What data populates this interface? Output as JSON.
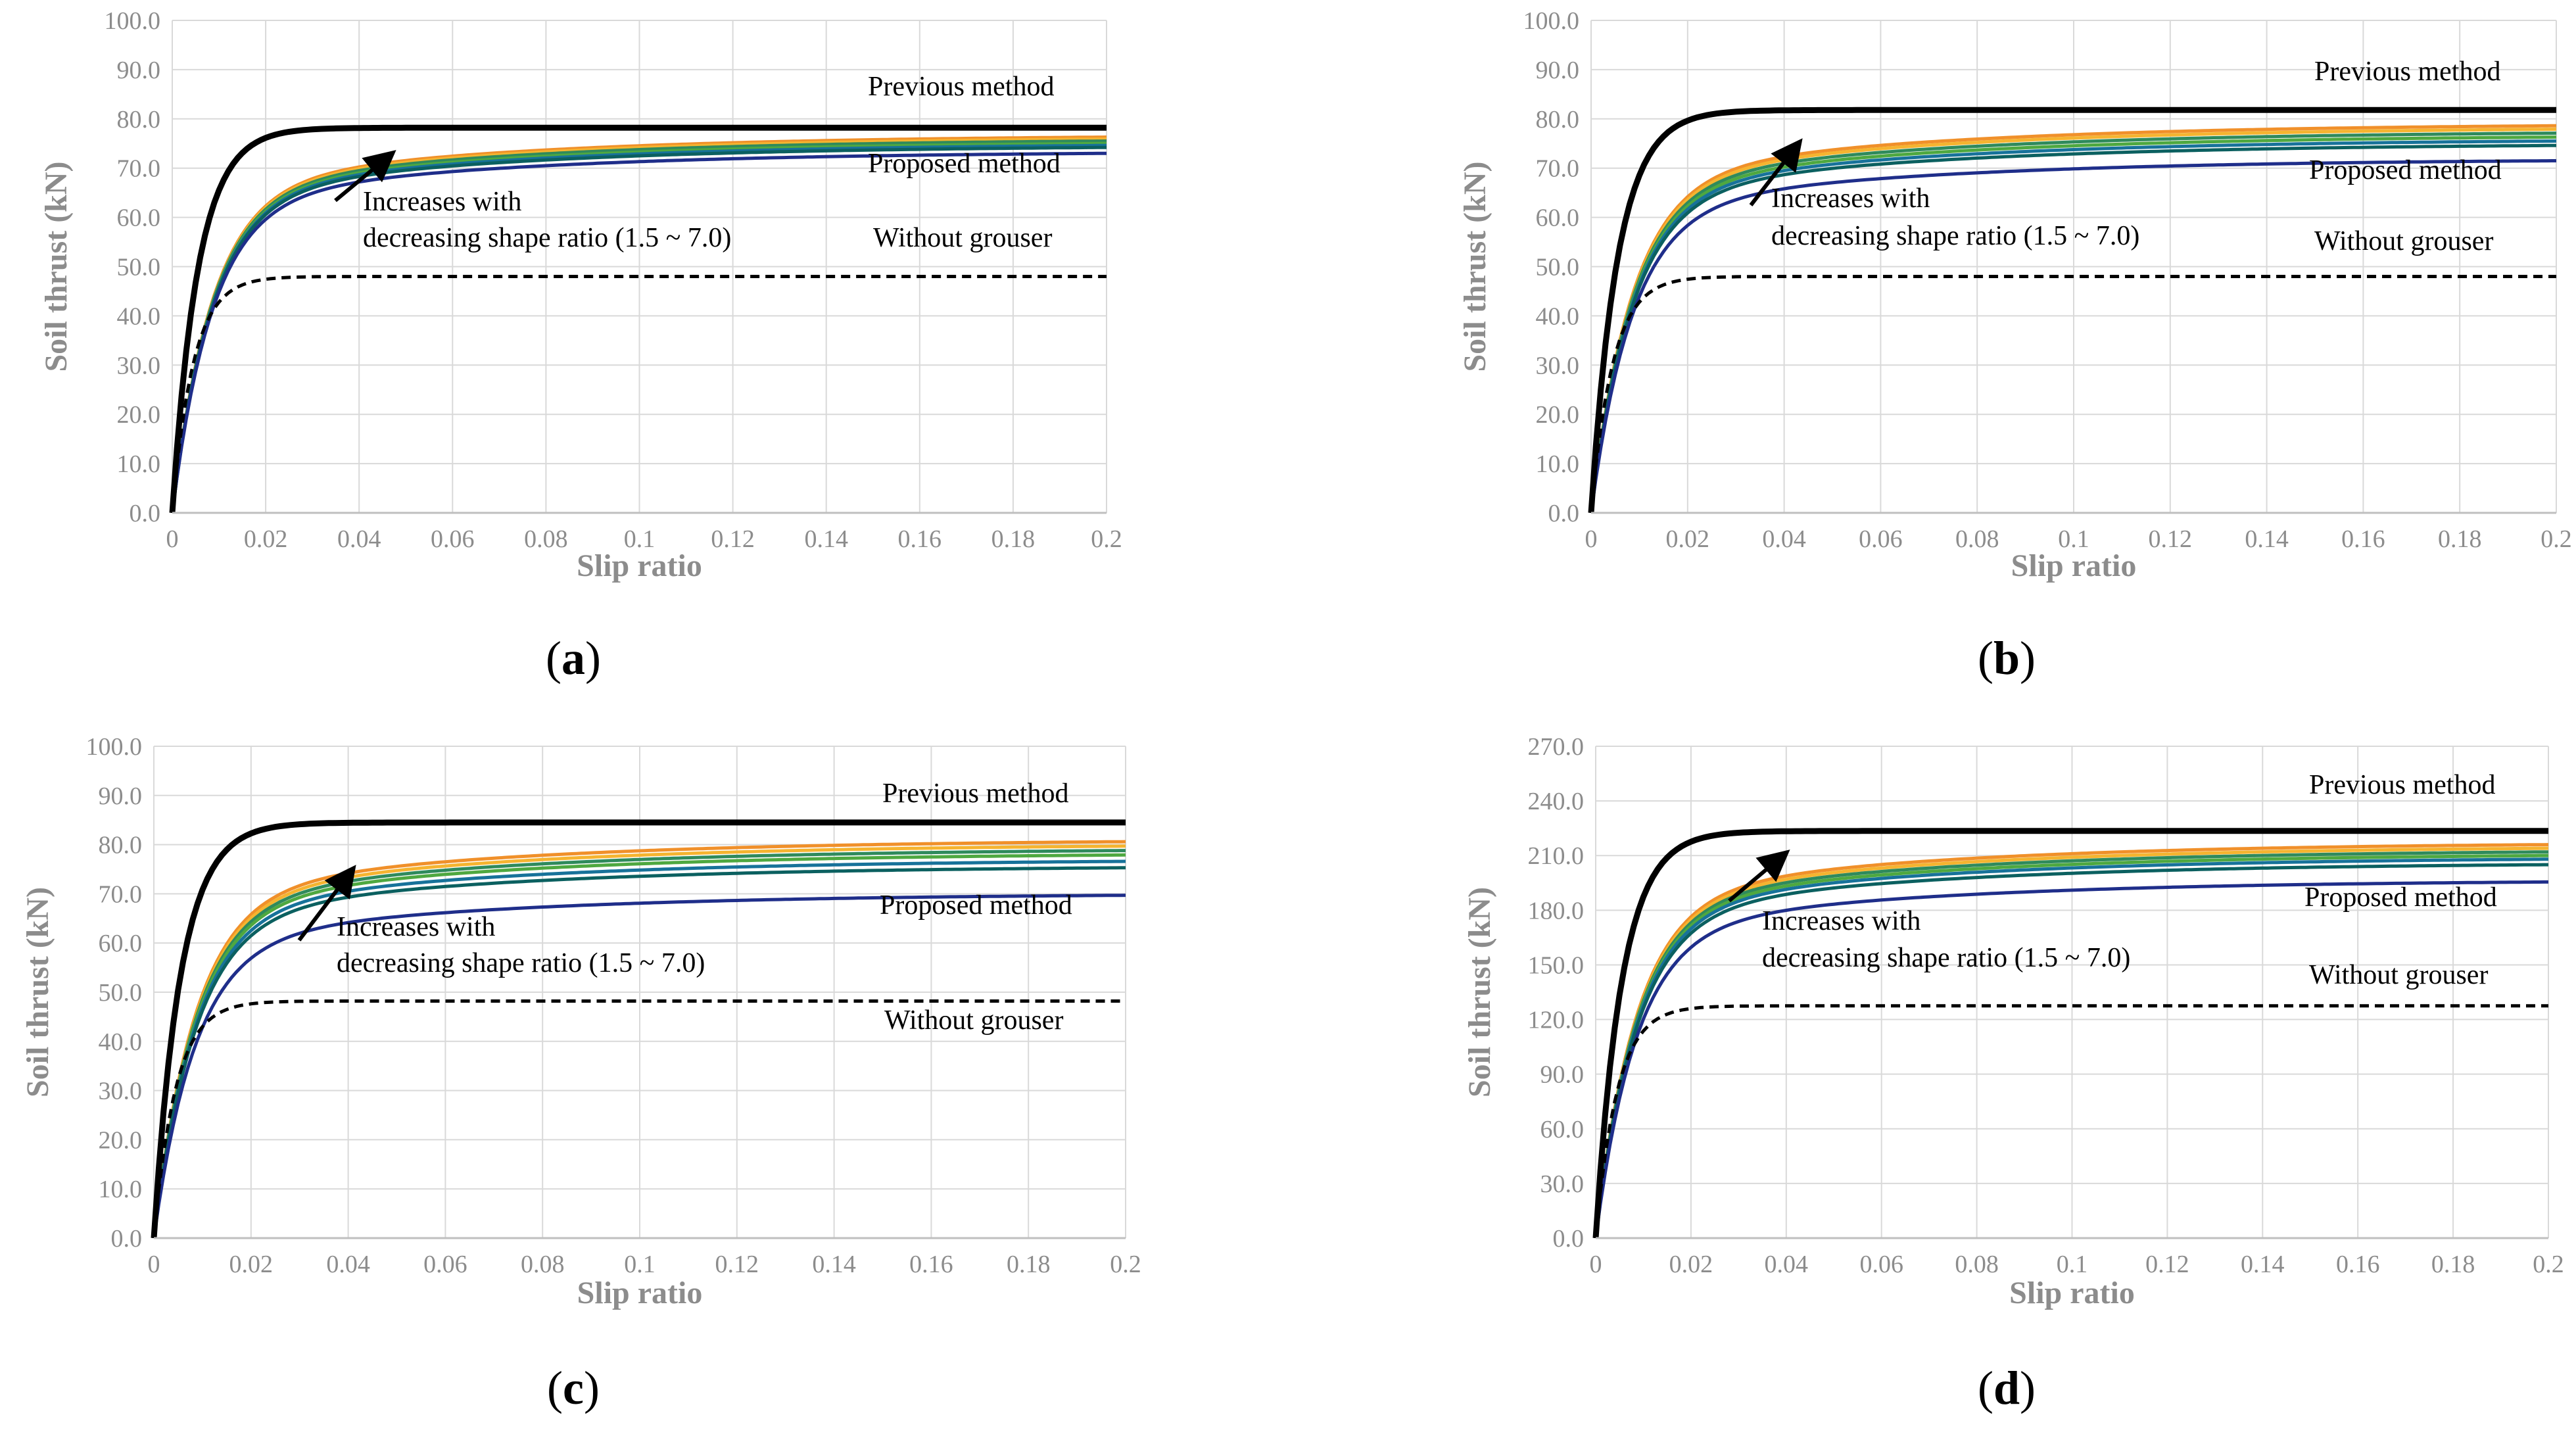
{
  "colors": {
    "previous": "#000000",
    "without": "#000000",
    "proposed_family": [
      "#f0902a",
      "#f5b430",
      "#2f8a5c",
      "#4ea840",
      "#17729a",
      "#0b6060",
      "#1f2e8a"
    ],
    "grid": "#d9d9d9",
    "tick_text": "#8c8c8c"
  },
  "chart_data": [
    {
      "panel_label_open": "(",
      "panel_label_letter": "a",
      "panel_label_close": ")",
      "type": "line",
      "xlabel": "Slip ratio",
      "ylabel": "Soil thrust (kN)",
      "xlim": [
        0,
        0.2
      ],
      "ylim": [
        0,
        100
      ],
      "x_ticks": [
        "0",
        "0.02",
        "0.04",
        "0.06",
        "0.08",
        "0.1",
        "0.12",
        "0.14",
        "0.16",
        "0.18",
        "0.2"
      ],
      "y_ticks": [
        "0.0",
        "10.0",
        "20.0",
        "30.0",
        "40.0",
        "50.0",
        "60.0",
        "70.0",
        "80.0",
        "90.0",
        "100.0"
      ],
      "grid": true,
      "annotations": {
        "previous": "Previous method",
        "proposed": "Proposed method",
        "without": "Without grouser",
        "arrow_line1": "Increases with",
        "arrow_line2": "decreasing shape ratio (1.5 ~ 7.0)"
      },
      "previous_method": {
        "plateau": 78.2
      },
      "without_grouser": {
        "plateau": 48.0
      },
      "proposed_method": {
        "finals": [
          76.3,
          75.9,
          75.5,
          75.0,
          74.6,
          74.2,
          73.0
        ]
      }
    },
    {
      "panel_label_open": "(",
      "panel_label_letter": "b",
      "panel_label_close": ")",
      "type": "line",
      "xlabel": "Slip ratio",
      "ylabel": "Soil thrust (kN)",
      "xlim": [
        0,
        0.2
      ],
      "ylim": [
        0,
        100
      ],
      "x_ticks": [
        "0",
        "0.02",
        "0.04",
        "0.06",
        "0.08",
        "0.1",
        "0.12",
        "0.14",
        "0.16",
        "0.18",
        "0.2"
      ],
      "y_ticks": [
        "0.0",
        "10.0",
        "20.0",
        "30.0",
        "40.0",
        "50.0",
        "60.0",
        "70.0",
        "80.0",
        "90.0",
        "100.0"
      ],
      "grid": true,
      "annotations": {
        "previous": "Previous method",
        "proposed": "Proposed method",
        "without": "Without grouser",
        "arrow_line1": "Increases with",
        "arrow_line2": "decreasing shape ratio (1.5 ~ 7.0)"
      },
      "previous_method": {
        "plateau": 81.8
      },
      "without_grouser": {
        "plateau": 48.0
      },
      "proposed_method": {
        "finals": [
          78.6,
          77.9,
          77.1,
          76.3,
          75.5,
          74.6,
          71.5
        ]
      }
    },
    {
      "panel_label_open": "(",
      "panel_label_letter": "c",
      "panel_label_close": ")",
      "type": "line",
      "xlabel": "Slip ratio",
      "ylabel": "Soil thrust (kN)",
      "xlim": [
        0,
        0.2
      ],
      "ylim": [
        0,
        100
      ],
      "x_ticks": [
        "0",
        "0.02",
        "0.04",
        "0.06",
        "0.08",
        "0.1",
        "0.12",
        "0.14",
        "0.16",
        "0.18",
        "0.2"
      ],
      "y_ticks": [
        "0.0",
        "10.0",
        "20.0",
        "30.0",
        "40.0",
        "50.0",
        "60.0",
        "70.0",
        "80.0",
        "90.0",
        "100.0"
      ],
      "grid": true,
      "annotations": {
        "previous": "Previous method",
        "proposed": "Proposed method",
        "without": "Without grouser",
        "arrow_line1": "Increases with",
        "arrow_line2": "decreasing shape ratio (1.5 ~ 7.0)"
      },
      "previous_method": {
        "plateau": 84.5
      },
      "without_grouser": {
        "plateau": 48.2
      },
      "proposed_method": {
        "finals": [
          80.6,
          79.7,
          78.8,
          77.9,
          76.6,
          75.3,
          69.7
        ]
      }
    },
    {
      "panel_label_open": "(",
      "panel_label_letter": "d",
      "panel_label_close": ")",
      "type": "line",
      "xlabel": "Slip ratio",
      "ylabel": "Soil thrust (kN)",
      "xlim": [
        0,
        0.2
      ],
      "ylim": [
        0,
        270
      ],
      "x_ticks": [
        "0",
        "0.02",
        "0.04",
        "0.06",
        "0.08",
        "0.1",
        "0.12",
        "0.14",
        "0.16",
        "0.18",
        "0.2"
      ],
      "y_ticks": [
        "0.0",
        "30.0",
        "60.0",
        "90.0",
        "120.0",
        "150.0",
        "180.0",
        "210.0",
        "240.0",
        "270.0"
      ],
      "grid": true,
      "annotations": {
        "previous": "Previous method",
        "proposed": "Proposed method",
        "without": "Without grouser",
        "arrow_line1": "Increases with",
        "arrow_line2": "decreasing shape ratio (1.5 ~ 7.0)"
      },
      "previous_method": {
        "plateau": 223.5
      },
      "without_grouser": {
        "plateau": 127.5
      },
      "proposed_method": {
        "finals": [
          216.0,
          214.0,
          212.0,
          210.0,
          208.0,
          205.0,
          195.5
        ]
      }
    }
  ]
}
